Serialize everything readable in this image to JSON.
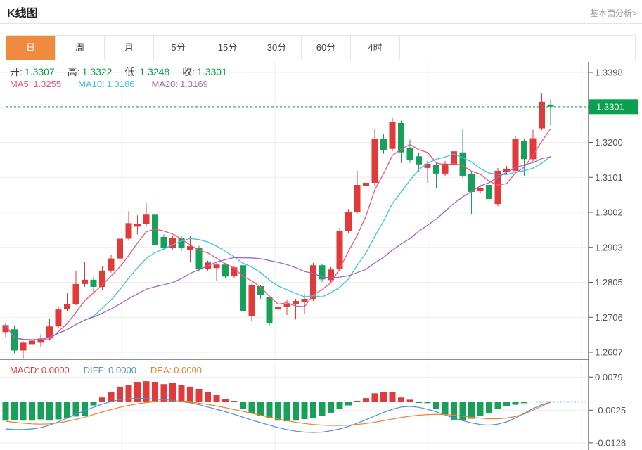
{
  "header": {
    "title": "K线图",
    "link_label": "基本面分析>"
  },
  "tabs": {
    "items": [
      {
        "label": "日",
        "active": true
      },
      {
        "label": "周",
        "active": false
      },
      {
        "label": "月",
        "active": false
      },
      {
        "label": "5分",
        "active": false
      },
      {
        "label": "15分",
        "active": false
      },
      {
        "label": "30分",
        "active": false
      },
      {
        "label": "60分",
        "active": false
      },
      {
        "label": "4时",
        "active": false
      }
    ]
  },
  "info": {
    "open_label": "开:",
    "open": "1.3307",
    "high_label": "高:",
    "high": "1.3322",
    "low_label": "低:",
    "low": "1.3248",
    "close_label": "收:",
    "close": "1.3301"
  },
  "ma_info": {
    "ma5_label": "MA5:",
    "ma5": "1.3255",
    "ma10_label": "MA10:",
    "ma10": "1.3186",
    "ma20_label": "MA20:",
    "ma20": "1.3169"
  },
  "macd_info": {
    "macd_label": "MACD:",
    "macd": "0.0000",
    "diff_label": "DIFF:",
    "diff": "0.0000",
    "dea_label": "DEA:",
    "dea": "0.0000"
  },
  "colors": {
    "up": "#e03a3a",
    "down": "#18a05a",
    "value_green": "#0aa14a",
    "price_tag_bg": "#0aa14e",
    "price_line": "#2eb05e",
    "ma5": "#f0557e",
    "ma10": "#3fc3e2",
    "ma20": "#a565c0",
    "diff": "#4a90d8",
    "dea": "#ee7f2d",
    "tab_active_bg": "#ef8a3f",
    "grid": "#ededed",
    "axis": "#4a4a4a",
    "tick_text": "#555555",
    "zero_dotted": "#a8cdea"
  },
  "chart_data": {
    "type": "candlestick+macd",
    "title": "K线图",
    "legend": [
      "MA5",
      "MA10",
      "MA20",
      "MACD",
      "DIFF",
      "DEA"
    ],
    "grid": true,
    "y_axis": {
      "tick_labels": [
        "1.3398",
        "1.3301",
        "1.3200",
        "1.3101",
        "1.3002",
        "1.2903",
        "1.2805",
        "1.2706",
        "1.2607"
      ],
      "range": [
        1.2607,
        1.3398
      ]
    },
    "current_price": 1.3301,
    "price_tag_label": "1.3301",
    "ma_periods": [
      5,
      10,
      20
    ],
    "candles": [
      [
        1.2664,
        1.269,
        1.265,
        1.2684
      ],
      [
        1.2672,
        1.2682,
        1.2604,
        1.2612
      ],
      [
        1.2612,
        1.2638,
        1.259,
        1.2634
      ],
      [
        1.263,
        1.2648,
        1.2598,
        1.264
      ],
      [
        1.2634,
        1.2658,
        1.2622,
        1.2646
      ],
      [
        1.2646,
        1.2702,
        1.264,
        1.268
      ],
      [
        1.268,
        1.2737,
        1.2674,
        1.2728
      ],
      [
        1.2728,
        1.2776,
        1.2722,
        1.2744
      ],
      [
        1.2744,
        1.2838,
        1.274,
        1.28
      ],
      [
        1.28,
        1.2862,
        1.2792,
        1.2812
      ],
      [
        1.2812,
        1.282,
        1.2774,
        1.2792
      ],
      [
        1.2792,
        1.285,
        1.2784,
        1.2838
      ],
      [
        1.2838,
        1.2882,
        1.2832,
        1.2872
      ],
      [
        1.2872,
        1.294,
        1.2866,
        1.2928
      ],
      [
        1.2928,
        1.3006,
        1.2922,
        1.2972
      ],
      [
        1.2962,
        1.2994,
        1.294,
        1.297
      ],
      [
        1.297,
        1.303,
        1.2962,
        1.2996
      ],
      [
        1.2996,
        1.3002,
        1.29,
        1.291
      ],
      [
        1.2933,
        1.294,
        1.2896,
        1.2901
      ],
      [
        1.2903,
        1.2936,
        1.2898,
        1.2929
      ],
      [
        1.2931,
        1.2936,
        1.2893,
        1.2901
      ],
      [
        1.2897,
        1.2937,
        1.2861,
        1.2907
      ],
      [
        1.2903,
        1.2908,
        1.2835,
        1.2841
      ],
      [
        1.2843,
        1.2866,
        1.2838,
        1.2861
      ],
      [
        1.2845,
        1.2862,
        1.2808,
        1.2855
      ],
      [
        1.2855,
        1.286,
        1.2816,
        1.2821
      ],
      [
        1.2823,
        1.2852,
        1.2818,
        1.2847
      ],
      [
        1.2853,
        1.2857,
        1.272,
        1.2724
      ],
      [
        1.271,
        1.28,
        1.2695,
        1.2797
      ],
      [
        1.2794,
        1.2798,
        1.2758,
        1.2768
      ],
      [
        1.2764,
        1.277,
        1.2683,
        1.269
      ],
      [
        1.2728,
        1.2746,
        1.2659,
        1.2736
      ],
      [
        1.2736,
        1.2754,
        1.2712,
        1.2744
      ],
      [
        1.2744,
        1.2758,
        1.27,
        1.2752
      ],
      [
        1.2748,
        1.2772,
        1.2714,
        1.2758
      ],
      [
        1.2758,
        1.286,
        1.2752,
        1.2853
      ],
      [
        1.2853,
        1.2858,
        1.2806,
        1.2813
      ],
      [
        1.2811,
        1.2848,
        1.2805,
        1.2841
      ],
      [
        1.2843,
        1.2958,
        1.2838,
        1.295
      ],
      [
        1.295,
        1.3012,
        1.2944,
        1.3004
      ],
      [
        1.3004,
        1.312,
        1.2998,
        1.308
      ],
      [
        1.3076,
        1.3125,
        1.3068,
        1.3086
      ],
      [
        1.3086,
        1.3239,
        1.3078,
        1.3211
      ],
      [
        1.3211,
        1.3225,
        1.3168,
        1.3179
      ],
      [
        1.3182,
        1.3269,
        1.3175,
        1.3259
      ],
      [
        1.3255,
        1.3262,
        1.3142,
        1.3172
      ],
      [
        1.3185,
        1.3208,
        1.3142,
        1.315
      ],
      [
        1.3161,
        1.317,
        1.3118,
        1.3138
      ],
      [
        1.3128,
        1.3148,
        1.3086,
        1.314
      ],
      [
        1.3136,
        1.3142,
        1.3072,
        1.3112
      ],
      [
        1.3112,
        1.3148,
        1.3105,
        1.314
      ],
      [
        1.3136,
        1.3182,
        1.313,
        1.3175
      ],
      [
        1.3172,
        1.3239,
        1.31,
        1.3106
      ],
      [
        1.3112,
        1.3118,
        1.2997,
        1.306
      ],
      [
        1.3062,
        1.308,
        1.3055,
        1.3072
      ],
      [
        1.308,
        1.3086,
        1.3,
        1.304
      ],
      [
        1.3026,
        1.3128,
        1.302,
        1.312
      ],
      [
        1.3116,
        1.3134,
        1.311,
        1.3126
      ],
      [
        1.312,
        1.322,
        1.3112,
        1.3211
      ],
      [
        1.3205,
        1.3212,
        1.3106,
        1.3153
      ],
      [
        1.3153,
        1.3236,
        1.3146,
        1.3212
      ],
      [
        1.324,
        1.334,
        1.3235,
        1.3315
      ],
      [
        1.3307,
        1.3322,
        1.3248,
        1.3301
      ]
    ],
    "macd": {
      "y_axis": {
        "tick_labels": [
          "0.0079",
          "-0.0025",
          "-0.0128"
        ],
        "tick_values": [
          0.0079,
          -0.0025,
          -0.0128
        ]
      },
      "hist": [
        -0.0058,
        -0.0056,
        -0.0058,
        -0.0058,
        -0.0054,
        -0.0058,
        -0.0054,
        -0.0049,
        -0.0045,
        -0.0044,
        -0.001,
        0.0015,
        0.0031,
        0.0049,
        0.0055,
        0.0064,
        0.0066,
        0.0064,
        0.0057,
        0.006,
        0.0055,
        0.0049,
        0.0042,
        0.0033,
        0.0022,
        0.0011,
        0.0004,
        -0.0022,
        -0.0033,
        -0.0042,
        -0.0051,
        -0.0058,
        -0.006,
        -0.0058,
        -0.0053,
        -0.005,
        -0.0044,
        -0.0033,
        -0.0022,
        -0.001,
        0.0004,
        0.0013,
        0.0028,
        0.0031,
        0.0031,
        0.0015,
        0.0008,
        -0.0002,
        -0.0003,
        -0.002,
        -0.004,
        -0.0055,
        -0.0058,
        -0.0052,
        -0.0044,
        -0.0033,
        -0.0022,
        -0.0013,
        -0.0008,
        -0.0003,
        0.0,
        0.0,
        0.0
      ],
      "diff": [
        -0.0084,
        -0.0086,
        -0.0086,
        -0.0084,
        -0.008,
        -0.0072,
        -0.0062,
        -0.005,
        -0.0038,
        -0.0026,
        -0.0016,
        -0.0006,
        0.0002,
        0.0008,
        0.0011,
        0.0012,
        0.0012,
        0.001,
        0.0008,
        0.0006,
        0.0002,
        -0.0002,
        -0.0008,
        -0.0015,
        -0.0022,
        -0.003,
        -0.0038,
        -0.0047,
        -0.0056,
        -0.0064,
        -0.0072,
        -0.008,
        -0.0086,
        -0.0091,
        -0.0094,
        -0.0095,
        -0.0094,
        -0.009,
        -0.0084,
        -0.0076,
        -0.0066,
        -0.0055,
        -0.0043,
        -0.0032,
        -0.0022,
        -0.0015,
        -0.0013,
        -0.0016,
        -0.0022,
        -0.003,
        -0.004,
        -0.005,
        -0.0058,
        -0.0065,
        -0.007,
        -0.0072,
        -0.0069,
        -0.0062,
        -0.005,
        -0.0035,
        -0.002,
        -0.0008,
        0.0
      ],
      "dea": [
        -0.006,
        -0.0063,
        -0.0066,
        -0.0068,
        -0.0069,
        -0.0068,
        -0.0065,
        -0.006,
        -0.0054,
        -0.0047,
        -0.0039,
        -0.0031,
        -0.0023,
        -0.0016,
        -0.001,
        -0.0005,
        -0.0001,
        0.0002,
        0.0003,
        0.0003,
        0.0002,
        0.0,
        -0.0003,
        -0.0007,
        -0.0012,
        -0.0017,
        -0.0023,
        -0.0029,
        -0.0035,
        -0.0041,
        -0.0047,
        -0.0053,
        -0.0058,
        -0.0063,
        -0.0067,
        -0.007,
        -0.0072,
        -0.0073,
        -0.0073,
        -0.0072,
        -0.007,
        -0.0067,
        -0.0063,
        -0.0058,
        -0.0053,
        -0.0048,
        -0.0044,
        -0.0041,
        -0.0039,
        -0.0038,
        -0.0039,
        -0.0041,
        -0.0044,
        -0.0047,
        -0.005,
        -0.0052,
        -0.0052,
        -0.005,
        -0.0045,
        -0.0037,
        -0.0025,
        -0.0012,
        0.0
      ]
    }
  }
}
